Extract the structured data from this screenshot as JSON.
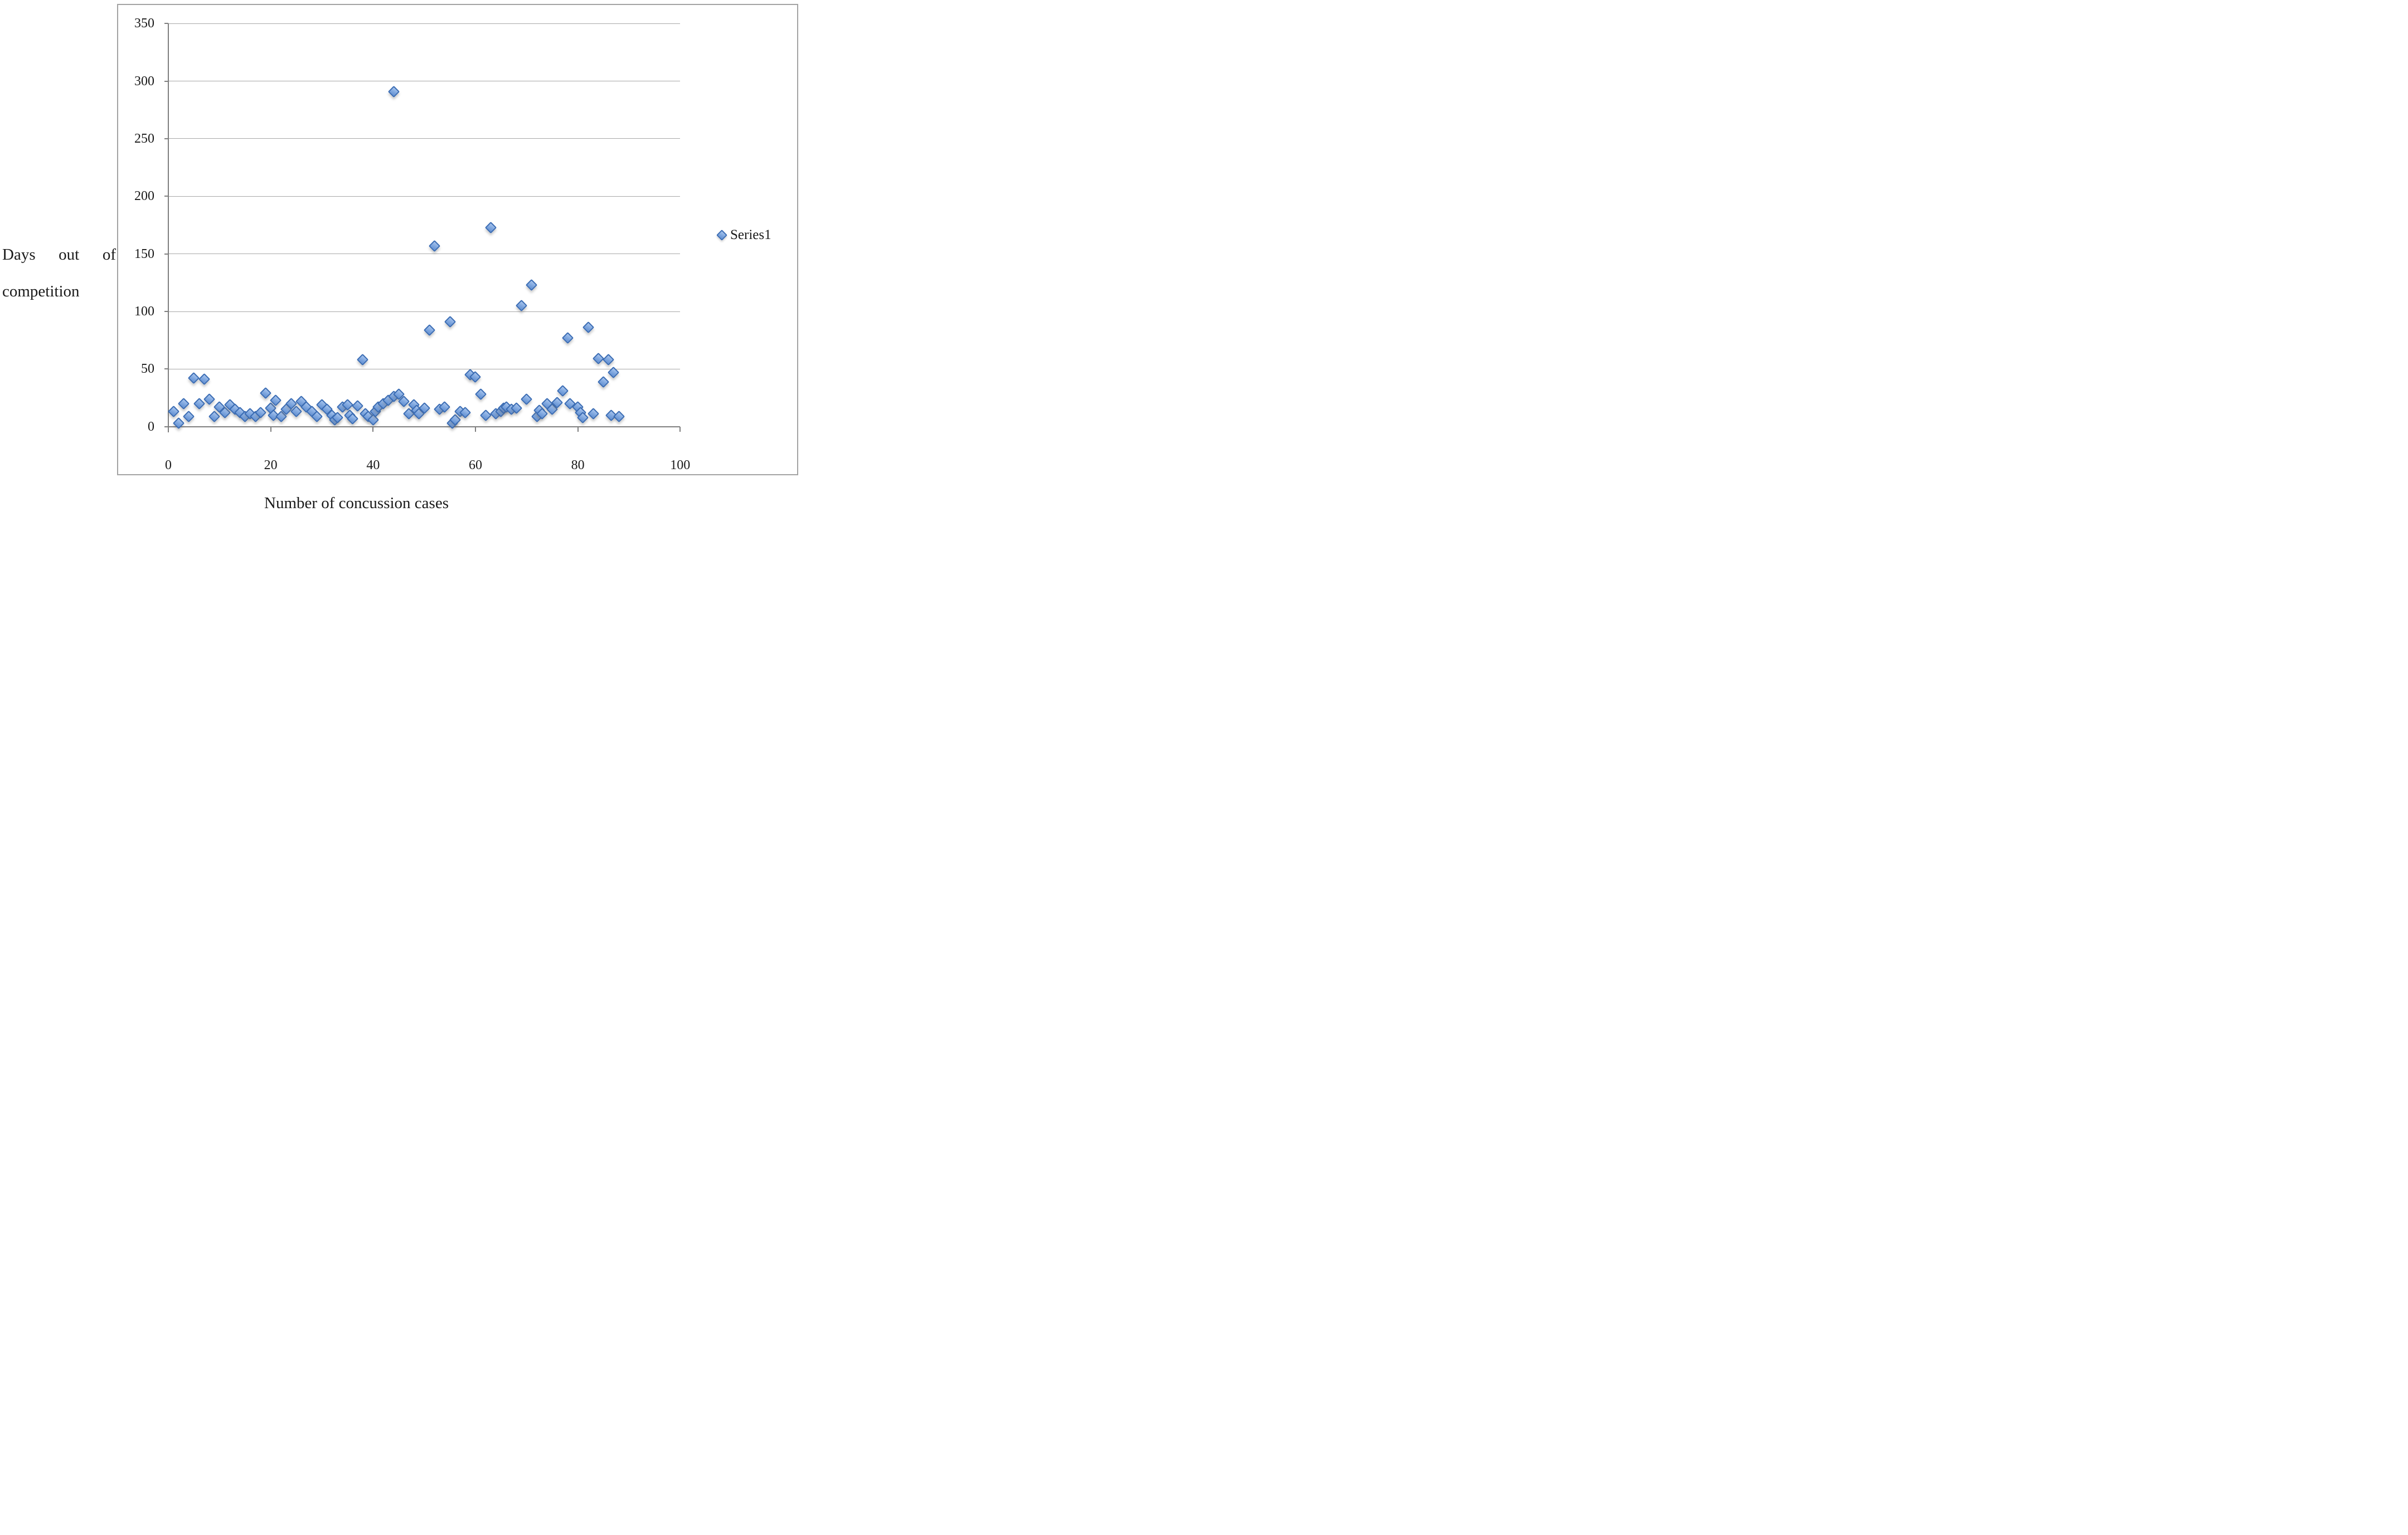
{
  "chart_data": {
    "type": "scatter",
    "title": "",
    "xlabel": "Number of concussion cases",
    "ylabel": "Days out of competition",
    "ylabel_lines": [
      "Days out of",
      "competition"
    ],
    "xlim": [
      0,
      100
    ],
    "ylim": [
      0,
      350
    ],
    "x_ticks": [
      "0",
      "20",
      "40",
      "60",
      "80",
      "100"
    ],
    "y_ticks": [
      "0",
      "50",
      "100",
      "150",
      "200",
      "250",
      "300",
      "350"
    ],
    "grid": "horizontal-only",
    "legend_position": "right",
    "series": [
      {
        "name": "Series1",
        "marker": "diamond",
        "points": [
          [
            1,
            13
          ],
          [
            2,
            3
          ],
          [
            3,
            20
          ],
          [
            4,
            9
          ],
          [
            5,
            42
          ],
          [
            6,
            20
          ],
          [
            7,
            41
          ],
          [
            8,
            24
          ],
          [
            9,
            9
          ],
          [
            10,
            17
          ],
          [
            11,
            12
          ],
          [
            12,
            19
          ],
          [
            13,
            15
          ],
          [
            14,
            12
          ],
          [
            15,
            9
          ],
          [
            16,
            11
          ],
          [
            17,
            9
          ],
          [
            18,
            12
          ],
          [
            19,
            29
          ],
          [
            20,
            16
          ],
          [
            20.5,
            10
          ],
          [
            21,
            23
          ],
          [
            22,
            9
          ],
          [
            23,
            15
          ],
          [
            24,
            20
          ],
          [
            25,
            13
          ],
          [
            26,
            22
          ],
          [
            27,
            17
          ],
          [
            28,
            13
          ],
          [
            29,
            9
          ],
          [
            30,
            19
          ],
          [
            31,
            15
          ],
          [
            32,
            10
          ],
          [
            32.5,
            6
          ],
          [
            33,
            8
          ],
          [
            34,
            17
          ],
          [
            35,
            19
          ],
          [
            35.5,
            10
          ],
          [
            36,
            7
          ],
          [
            37,
            18
          ],
          [
            38,
            58
          ],
          [
            38.5,
            11
          ],
          [
            39,
            9
          ],
          [
            40,
            6
          ],
          [
            40.5,
            13
          ],
          [
            41,
            17
          ],
          [
            42,
            20
          ],
          [
            43,
            23
          ],
          [
            44,
            291
          ],
          [
            44,
            26
          ],
          [
            45,
            28
          ],
          [
            46,
            22
          ],
          [
            47,
            11
          ],
          [
            48,
            19
          ],
          [
            48.5,
            14
          ],
          [
            49,
            11
          ],
          [
            50,
            16
          ],
          [
            51,
            84
          ],
          [
            52,
            157
          ],
          [
            53,
            15
          ],
          [
            54,
            17
          ],
          [
            55,
            91
          ],
          [
            55.5,
            3
          ],
          [
            56,
            6
          ],
          [
            57,
            13
          ],
          [
            58,
            12
          ],
          [
            59,
            45
          ],
          [
            60,
            43
          ],
          [
            61,
            28
          ],
          [
            62,
            10
          ],
          [
            63,
            173
          ],
          [
            64,
            11
          ],
          [
            65,
            13
          ],
          [
            65.5,
            16
          ],
          [
            66,
            17
          ],
          [
            67,
            15
          ],
          [
            68,
            16
          ],
          [
            69,
            105
          ],
          [
            70,
            24
          ],
          [
            71,
            123
          ],
          [
            72,
            9
          ],
          [
            72.5,
            14
          ],
          [
            73,
            11
          ],
          [
            74,
            20
          ],
          [
            75,
            15
          ],
          [
            76,
            21
          ],
          [
            77,
            31
          ],
          [
            78,
            77
          ],
          [
            78.5,
            20
          ],
          [
            80,
            17
          ],
          [
            80.5,
            12
          ],
          [
            81,
            8
          ],
          [
            82,
            86
          ],
          [
            83,
            11
          ],
          [
            84,
            59
          ],
          [
            85,
            39
          ],
          [
            86,
            58
          ],
          [
            86.5,
            10
          ],
          [
            87,
            47
          ],
          [
            88,
            9
          ]
        ]
      }
    ],
    "legend_entries": [
      {
        "label": "Series1"
      }
    ],
    "colors": {
      "marker_fill": "#7EA6DE",
      "marker_fill_light": "#A6C4EE",
      "marker_border": "#3A6CB4",
      "gridline": "#A8A8A8",
      "axis": "#7F7F7F",
      "chart_border": "#A3A3A3",
      "text": "#1A1A1A",
      "background": "#FFFFFF"
    }
  }
}
